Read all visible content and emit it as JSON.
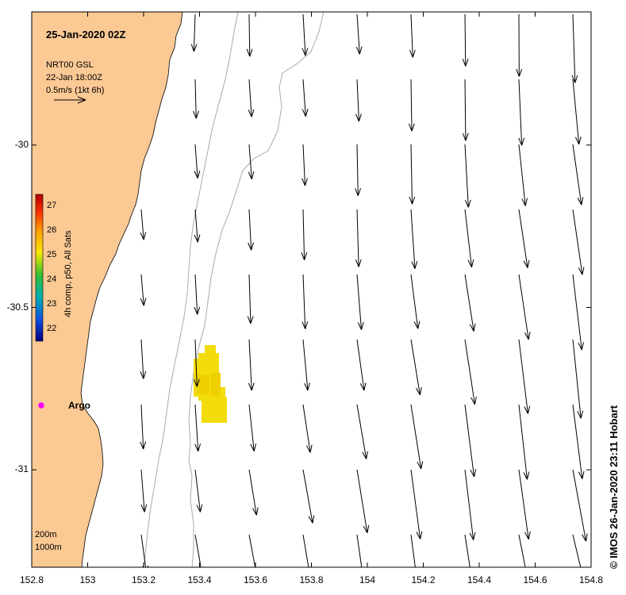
{
  "title": "25-Jan-2020 02Z",
  "legend": {
    "product": "NRT00 GSL",
    "date": "22-Jan 18:00Z",
    "scale": "0.5m/s (1kt 6h)"
  },
  "colorbar": {
    "title": "4h comp, p50, All Sats",
    "ticks": [
      "27",
      "26",
      "25",
      "24",
      "23",
      "22"
    ],
    "min": 21.5,
    "max": 27.5
  },
  "station": {
    "label": "Argo",
    "lon": 152.83,
    "lat": -30.79,
    "color": "#ff00ff"
  },
  "isobaths": [
    "200m",
    "1000m"
  ],
  "axes": {
    "x_ticks": [
      "152.8",
      "153",
      "153.2",
      "153.4",
      "153.6",
      "153.8",
      "154",
      "154.2",
      "154.4",
      "154.6",
      "154.8"
    ],
    "y_ticks": [
      "-30",
      "-30.5",
      "-31"
    ],
    "x_range": [
      152.8,
      154.8
    ],
    "y_range": [
      -31.3,
      -29.59
    ]
  },
  "credit": "© IMOS 26-Jan-2020 23:11 Hobart",
  "colors": {
    "land": "#fbc994",
    "sst_patch": "#f3dc0c",
    "isobath": "#aaaaaa"
  }
}
